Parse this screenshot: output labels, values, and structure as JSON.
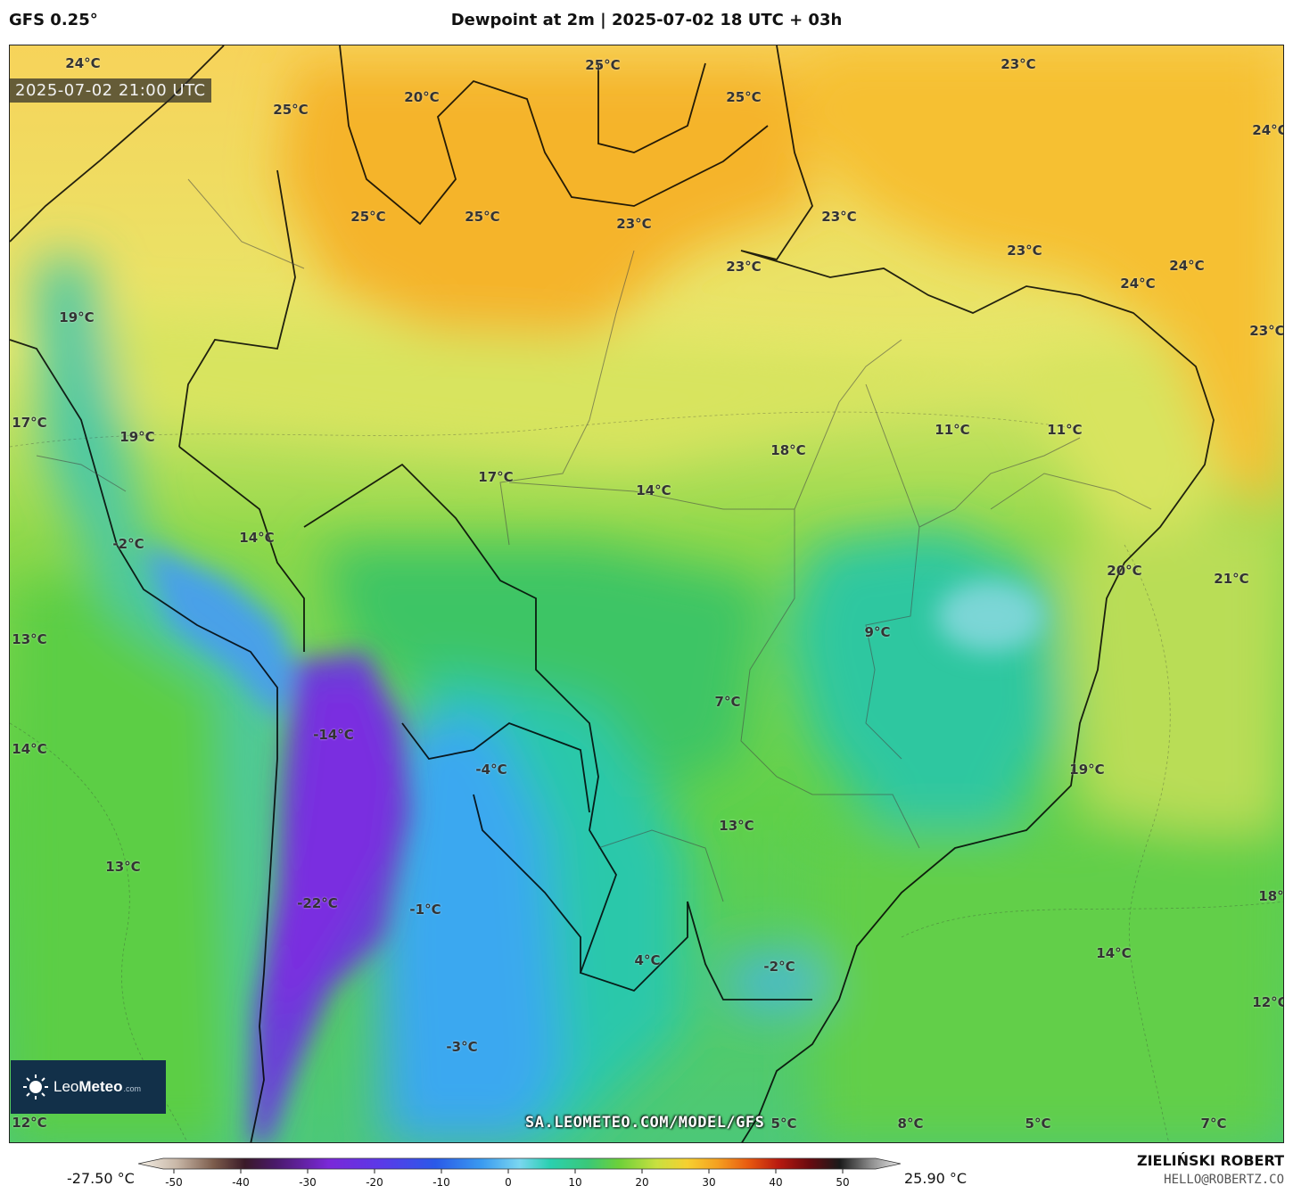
{
  "header": {
    "model": "GFS 0.25°",
    "title": "Dewpoint at 2m | 2025-07-02 18 UTC + 03h"
  },
  "map": {
    "timestamp": "2025-07-02 21:00 UTC",
    "watermark_url": "SA.LEOMETEO.COM/MODEL/GFS",
    "logo": {
      "brand_bold": "Leo",
      "brand_rest": "Meteo",
      "suffix": ".com"
    },
    "labels": [
      "24°C",
      "25°C",
      "20°C",
      "25°C",
      "25°C",
      "23°C",
      "24°C",
      "23°C",
      "23°C",
      "25°C",
      "25°C",
      "23°C",
      "24°C",
      "23°C",
      "24°C",
      "23°C",
      "19°C",
      "17°C",
      "19°C",
      "11°C",
      "11°C",
      "18°C",
      "17°C",
      "14°C",
      "14°C",
      "-2°C",
      "20°C",
      "21°C",
      "9°C",
      "13°C",
      "7°C",
      "-14°C",
      "14°C",
      "-4°C",
      "19°C",
      "13°C",
      "13°C",
      "18°C",
      "-22°C",
      "-1°C",
      "14°C",
      "4°C",
      "-2°C",
      "12°C",
      "-3°C",
      "12°C",
      "5°C",
      "8°C",
      "5°C",
      "7°C"
    ]
  },
  "colorbar": {
    "min_label": "-27.50 °C",
    "max_label": "25.90 °C",
    "ticks": [
      "-50",
      "-40",
      "-30",
      "-20",
      "-10",
      "0",
      "10",
      "20",
      "30",
      "40",
      "50"
    ]
  },
  "footer": {
    "author": "ZIELIŃSKI ROBERT",
    "email": "HELLO@ROBERTZ.CO"
  }
}
